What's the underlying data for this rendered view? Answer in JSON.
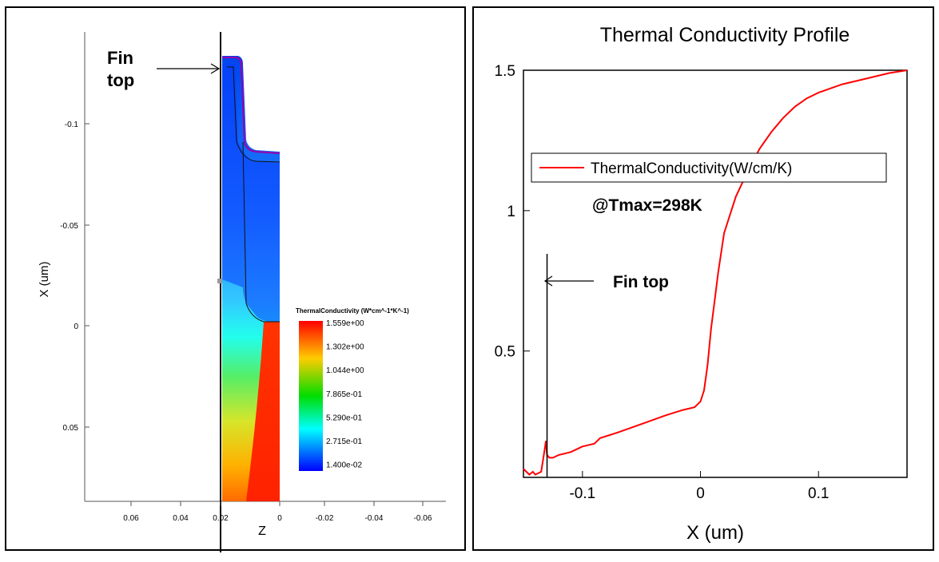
{
  "chart_data": [
    {
      "type": "heatmap",
      "panel": "left",
      "annotation": {
        "line1": "Fin",
        "line2": "top"
      },
      "xlabel": "Z",
      "ylabel": "X (um)",
      "x_ticks": [
        "0.06",
        "0.04",
        "0.02",
        "0",
        "-0.02",
        "-0.04",
        "-0.06"
      ],
      "y_ticks": [
        "-0.1",
        "-0.05",
        "0",
        "0.05"
      ],
      "colorbar": {
        "title": "ThermalConductivity (W*cm^-1*K^-1)",
        "labels": [
          "1.559e+00",
          "1.302e+00",
          "1.044e+00",
          "7.865e-01",
          "5.290e-01",
          "2.715e-01",
          "1.400e-02"
        ],
        "colors": [
          "#ff0000",
          "#ffcc00",
          "#00dd00",
          "#00ffff",
          "#0000ff"
        ]
      }
    },
    {
      "type": "line",
      "panel": "right",
      "title": "Thermal Conductivity Profile",
      "xlabel": "X (um)",
      "ylabel": "",
      "xlim": [
        -0.15,
        0.175
      ],
      "ylim": [
        0.05,
        1.5
      ],
      "x_ticks": [
        -0.1,
        0,
        0.1
      ],
      "y_ticks": [
        0.5,
        1,
        1.5
      ],
      "x_tick_labels": [
        "-0.1",
        "0",
        "0.1"
      ],
      "y_tick_labels": [
        "0.5",
        "1",
        "1.5"
      ],
      "annotation": "Fin top",
      "annotation_x": -0.13,
      "condition_label": "@Tmax=298K",
      "series": [
        {
          "name": "ThermalConductivity(W/cm/K)",
          "color": "#ff0000",
          "x": [
            -0.15,
            -0.145,
            -0.142,
            -0.14,
            -0.135,
            -0.132,
            -0.131,
            -0.13,
            -0.128,
            -0.125,
            -0.12,
            -0.11,
            -0.1,
            -0.09,
            -0.085,
            -0.07,
            -0.05,
            -0.03,
            -0.015,
            -0.005,
            0.0,
            0.003,
            0.006,
            0.009,
            0.012,
            0.015,
            0.02,
            0.03,
            0.04,
            0.05,
            0.06,
            0.07,
            0.08,
            0.09,
            0.1,
            0.12,
            0.14,
            0.16,
            0.175
          ],
          "y": [
            0.08,
            0.06,
            0.07,
            0.06,
            0.07,
            0.15,
            0.18,
            0.13,
            0.12,
            0.12,
            0.13,
            0.14,
            0.16,
            0.17,
            0.19,
            0.21,
            0.24,
            0.27,
            0.29,
            0.3,
            0.32,
            0.36,
            0.45,
            0.58,
            0.68,
            0.78,
            0.92,
            1.05,
            1.14,
            1.22,
            1.28,
            1.33,
            1.37,
            1.4,
            1.42,
            1.45,
            1.47,
            1.49,
            1.5
          ]
        }
      ]
    }
  ]
}
